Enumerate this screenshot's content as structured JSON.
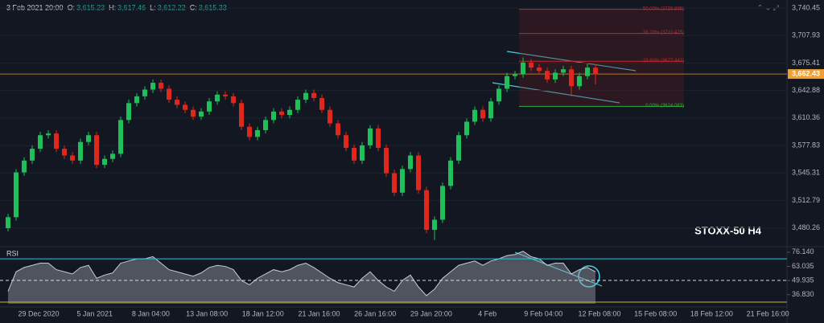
{
  "chart_data": {
    "type": "candlestick",
    "header": {
      "date": "3 Feb 2021 20:00",
      "items": [
        {
          "label": "O:",
          "value": "3,615.23"
        },
        {
          "label": "H:",
          "value": "3,617.46"
        },
        {
          "label": "L:",
          "value": "3,612.22"
        },
        {
          "label": "C:",
          "value": "3,615.33"
        }
      ]
    },
    "annotation": "STOXX-50 H4",
    "up_color": "#1fbf5a",
    "down_color": "#e0271e",
    "open": [
      3480,
      3493,
      3546,
      3560,
      3574,
      3590,
      3592,
      3574,
      3566,
      3560,
      3582,
      3590,
      3555,
      3562,
      3568,
      3608,
      3628,
      3636,
      3644,
      3652,
      3645,
      3632,
      3626,
      3620,
      3612,
      3618,
      3630,
      3638,
      3636,
      3628,
      3600,
      3588,
      3596,
      3608,
      3618,
      3614,
      3620,
      3632,
      3640,
      3634,
      3620,
      3604,
      3590,
      3575,
      3560,
      3578,
      3598,
      3575,
      3545,
      3522,
      3550,
      3566,
      3525,
      3478,
      3490,
      3530,
      3560,
      3590,
      3606,
      3620,
      3610,
      3630,
      3645,
      3660,
      3662,
      3676,
      3670,
      3666,
      3656,
      3664,
      3668,
      3648,
      3660,
      3670
    ],
    "high": [
      3497,
      3550,
      3564,
      3578,
      3594,
      3596,
      3596,
      3578,
      3570,
      3586,
      3594,
      3594,
      3566,
      3572,
      3612,
      3632,
      3640,
      3648,
      3656,
      3656,
      3649,
      3636,
      3630,
      3624,
      3622,
      3634,
      3642,
      3642,
      3640,
      3632,
      3604,
      3600,
      3612,
      3622,
      3622,
      3624,
      3636,
      3644,
      3644,
      3638,
      3624,
      3608,
      3594,
      3579,
      3582,
      3602,
      3602,
      3579,
      3549,
      3554,
      3570,
      3570,
      3529,
      3494,
      3534,
      3564,
      3594,
      3610,
      3624,
      3624,
      3634,
      3649,
      3664,
      3666,
      3682,
      3680,
      3674,
      3670,
      3668,
      3672,
      3672,
      3664,
      3674,
      3674
    ],
    "low": [
      3476,
      3489,
      3542,
      3556,
      3570,
      3586,
      3570,
      3562,
      3556,
      3556,
      3578,
      3551,
      3551,
      3558,
      3564,
      3604,
      3624,
      3632,
      3640,
      3641,
      3628,
      3622,
      3616,
      3608,
      3608,
      3614,
      3626,
      3632,
      3624,
      3596,
      3584,
      3584,
      3592,
      3604,
      3610,
      3610,
      3616,
      3628,
      3630,
      3616,
      3600,
      3586,
      3571,
      3556,
      3556,
      3574,
      3571,
      3541,
      3518,
      3518,
      3546,
      3521,
      3474,
      3466,
      3486,
      3526,
      3556,
      3586,
      3602,
      3606,
      3606,
      3626,
      3641,
      3656,
      3658,
      3666,
      3662,
      3652,
      3652,
      3660,
      3636,
      3644,
      3656,
      3650
    ],
    "close": [
      3493,
      3546,
      3560,
      3574,
      3590,
      3592,
      3574,
      3566,
      3560,
      3582,
      3590,
      3555,
      3562,
      3568,
      3608,
      3628,
      3636,
      3644,
      3652,
      3645,
      3632,
      3626,
      3620,
      3612,
      3618,
      3630,
      3638,
      3636,
      3628,
      3600,
      3588,
      3596,
      3608,
      3618,
      3614,
      3620,
      3632,
      3640,
      3634,
      3620,
      3604,
      3590,
      3575,
      3560,
      3578,
      3598,
      3575,
      3545,
      3522,
      3550,
      3566,
      3525,
      3478,
      3490,
      3530,
      3560,
      3590,
      3606,
      3620,
      3610,
      3630,
      3645,
      3660,
      3662,
      3676,
      3670,
      3666,
      3656,
      3664,
      3668,
      3648,
      3660,
      3670,
      3662
    ],
    "ylim": [
      3460,
      3750
    ],
    "yticks": [
      {
        "value": 3740.45,
        "label": "3,740.45"
      },
      {
        "value": 3707.93,
        "label": "3,707.93"
      },
      {
        "value": 3675.41,
        "label": "3,675.41"
      },
      {
        "value": 3642.88,
        "label": "3,642.88"
      },
      {
        "value": 3610.36,
        "label": "3,610.36"
      },
      {
        "value": 3577.83,
        "label": "3,577.83"
      },
      {
        "value": 3545.31,
        "label": "3,545.31"
      },
      {
        "value": 3512.79,
        "label": "3,512.79"
      },
      {
        "value": 3480.26,
        "label": "3,480.26"
      }
    ],
    "last_price": {
      "value": 3662.43,
      "label": "3,662.43",
      "color": "#f0a030"
    },
    "fib_levels": [
      {
        "value": 3738.896,
        "label": "50.00% (3738.896)",
        "color": "#c2272d"
      },
      {
        "value": 3710.475,
        "label": "38.20% (3710.475)",
        "color": "#c2272d"
      },
      {
        "value": 3677.442,
        "label": "23.60% (3677.442)",
        "color": "#c2272d"
      },
      {
        "value": 3624.083,
        "label": "0.00% (3624.083)",
        "color": "#2eaa3c"
      }
    ],
    "x_labels": [
      "29 Dec 2020",
      "5 Jan 2021",
      "8 Jan 04:00",
      "13 Jan 08:00",
      "18 Jan 12:00",
      "21 Jan 16:00",
      "26 Jan 16:00",
      "29 Jan 20:00",
      "4 Feb",
      "9 Feb 04:00",
      "12 Feb 08:00",
      "15 Feb 08:00",
      "18 Feb 12:00",
      "21 Feb 16:00"
    ],
    "rsi": {
      "title": "RSI",
      "color": "#9aa0a8",
      "values": [
        40,
        58,
        62,
        64,
        66,
        66,
        60,
        58,
        56,
        62,
        64,
        52,
        55,
        57,
        66,
        68,
        70,
        70,
        72,
        66,
        60,
        58,
        56,
        54,
        57,
        62,
        64,
        63,
        60,
        50,
        46,
        52,
        56,
        60,
        58,
        60,
        64,
        66,
        62,
        57,
        52,
        48,
        46,
        44,
        52,
        58,
        50,
        44,
        40,
        50,
        55,
        44,
        36,
        42,
        52,
        58,
        64,
        66,
        68,
        64,
        68,
        70,
        73,
        74,
        77,
        72,
        70,
        64,
        66,
        66,
        56,
        60,
        62,
        58
      ],
      "ylim": [
        28.5,
        80.5
      ],
      "yticks": [
        {
          "value": 76.14,
          "label": "76.140"
        },
        {
          "value": 63.035,
          "label": "63.035"
        },
        {
          "value": 49.935,
          "label": "49.935"
        },
        {
          "value": 36.83,
          "label": "36.830"
        }
      ],
      "bands": [
        {
          "value": 70,
          "color": "#26c6da"
        },
        {
          "value": 50,
          "color": "#dddddd"
        },
        {
          "value": 30,
          "color": "#c8b432"
        }
      ]
    }
  }
}
